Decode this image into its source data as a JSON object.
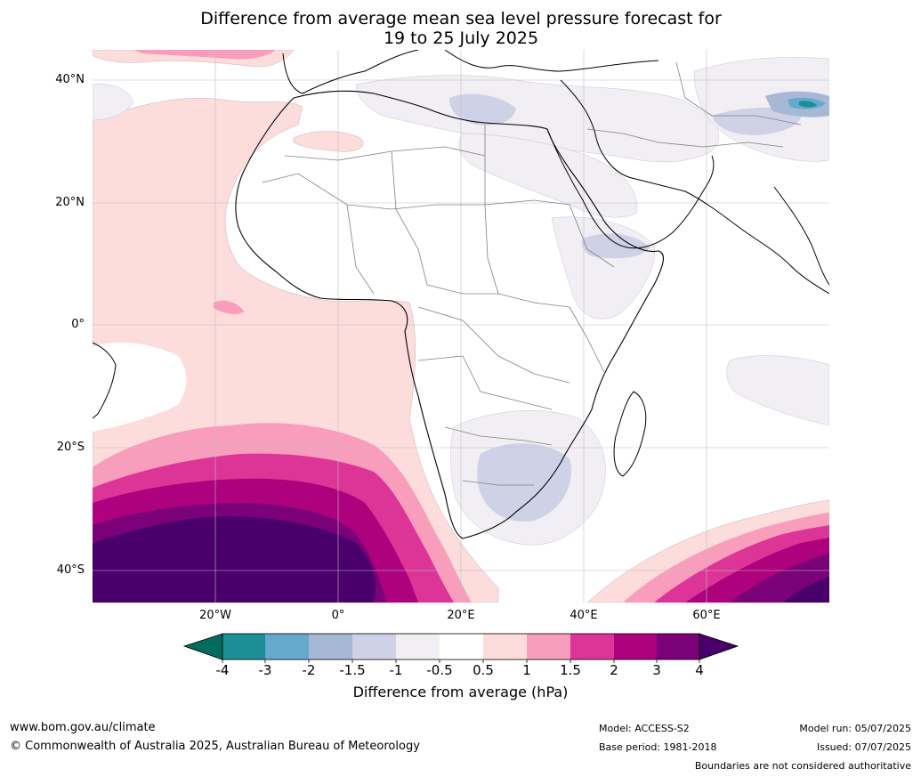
{
  "title": {
    "line1": "Difference from average mean sea level pressure forecast for",
    "line2": "19 to 25 July 2025"
  },
  "axes": {
    "lat_labels": [
      "40°N",
      "20°N",
      "0°",
      "20°S",
      "40°S"
    ],
    "lon_labels": [
      "20°W",
      "0°",
      "20°E",
      "40°E",
      "60°E"
    ]
  },
  "colorbar": {
    "label": "Difference from average (hPa)",
    "ticks": [
      "-4",
      "-3",
      "-2",
      "-1.5",
      "-1",
      "-0.5",
      "0.5",
      "1",
      "1.5",
      "2",
      "3",
      "4"
    ],
    "colors": {
      "below_min": "#006b5e",
      "c_m4_m3": "#1b8f93",
      "c_m3_m2": "#66a9ce",
      "c_m2_m15": "#a7b8d6",
      "c_m15_m1": "#cfd2e6",
      "c_m1_m05": "#f1eef4",
      "c_m05_05": "#ffffff",
      "c_05_1": "#fddcdc",
      "c_1_15": "#f89dbb",
      "c_15_2": "#dd3497",
      "c_2_3": "#ae017e",
      "c_3_4": "#7a0177",
      "above_max": "#49006a"
    }
  },
  "footer": {
    "website": "www.bom.gov.au/climate",
    "copyright": "© Commonwealth of Australia 2025, Australian Bureau of Meteorology",
    "model": "Model: ACCESS-S2",
    "base_period": "Base period: 1981-2018",
    "model_run": "Model run: 05/07/2025",
    "issued": "Issued: 07/07/2025",
    "boundaries_note": "Boundaries are not considered authoritative"
  }
}
